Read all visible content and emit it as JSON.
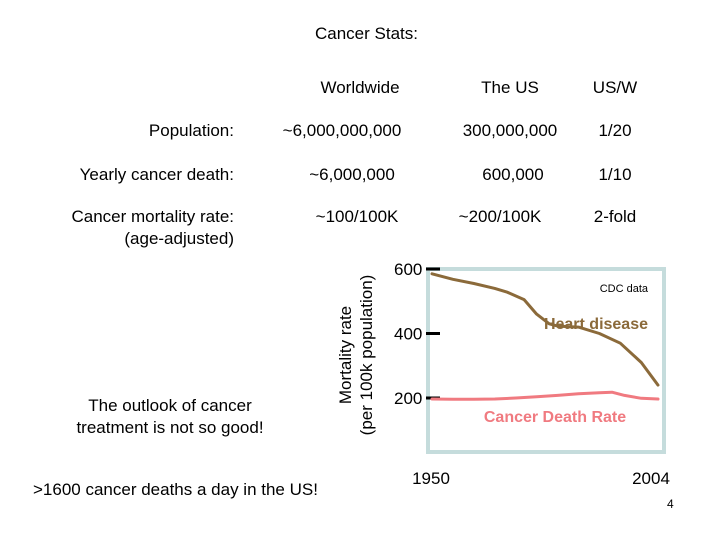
{
  "slide": {
    "title": "Cancer Stats:",
    "page_number": "4"
  },
  "table": {
    "columns": [
      "Worldwide",
      "The US",
      "US/W"
    ],
    "rows": [
      {
        "label": "Population:",
        "sublabel": "",
        "values": [
          "~6,000,000,000",
          "300,000,000",
          "1/20"
        ]
      },
      {
        "label": "Yearly cancer death:",
        "sublabel": "",
        "values": [
          "~6,000,000",
          "600,000",
          "1/10"
        ]
      },
      {
        "label": "Cancer mortality rate:",
        "sublabel": "(age-adjusted)",
        "values": [
          "~100/100K",
          "~200/100K",
          "2-fold"
        ]
      }
    ]
  },
  "notes": {
    "outlook_line1": "The outlook of cancer",
    "outlook_line2": "treatment is not so good!",
    "daily_deaths": ">1600 cancer deaths a day in the US!"
  },
  "colors": {
    "heart": "#8b6a3a",
    "cancer": "#f07a80",
    "frame": "#c5dcdc"
  },
  "chart_data": {
    "type": "line",
    "title": "",
    "ylabel_line1": "Mortality rate",
    "ylabel_line2": "(per 100k population)",
    "source_note": "CDC data",
    "ylim": [
      200,
      600
    ],
    "xlim": [
      1950,
      2004
    ],
    "y_ticks": [
      600,
      400,
      200
    ],
    "x_ticks": [
      1950,
      2004
    ],
    "grid": false,
    "series": [
      {
        "name": "Heart disease",
        "x": [
          1950,
          1955,
          1960,
          1965,
          1968,
          1972,
          1975,
          1978,
          1980,
          1985,
          1990,
          1995,
          2000,
          2004
        ],
        "values": [
          585,
          568,
          555,
          540,
          528,
          505,
          460,
          430,
          423,
          420,
          400,
          370,
          310,
          240
        ]
      },
      {
        "name": "Cancer Death Rate",
        "x": [
          1950,
          1955,
          1960,
          1965,
          1970,
          1975,
          1980,
          1985,
          1990,
          1993,
          1996,
          2000,
          2004
        ],
        "values": [
          197,
          196,
          196,
          197,
          200,
          204,
          208,
          213,
          216,
          218,
          208,
          199,
          197
        ]
      }
    ]
  }
}
